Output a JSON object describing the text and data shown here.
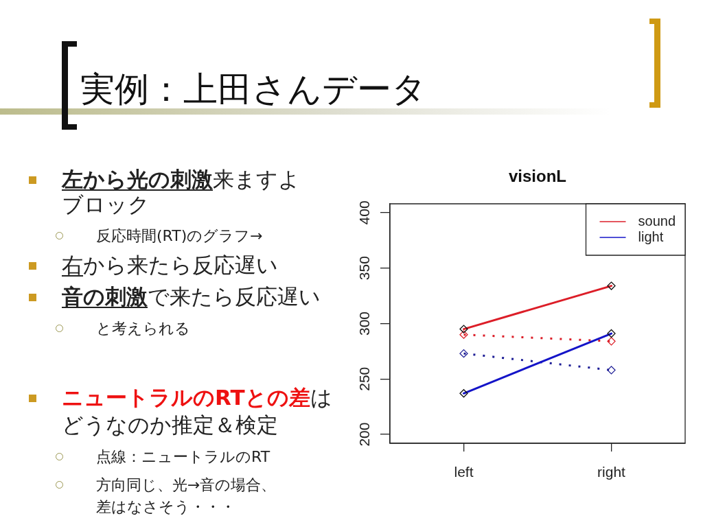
{
  "chart_data": {
    "type": "line",
    "title": "visionL",
    "categories": [
      "left",
      "right"
    ],
    "series": [
      {
        "name": "sound",
        "color": "#dc1e28",
        "values": [
          295,
          334
        ],
        "line_style": "solid"
      },
      {
        "name": "light",
        "color": "#1414c8",
        "values": [
          237,
          291
        ],
        "line_style": "solid"
      },
      {
        "color": "#dc1e28",
        "values": [
          290,
          284
        ],
        "line_style": "dotted"
      },
      {
        "color": "#1e1e96",
        "values": [
          273,
          258
        ],
        "line_style": "dotted"
      }
    ],
    "ylim": [
      192,
      408
    ],
    "yticks": [
      200,
      250,
      300,
      350,
      400
    ],
    "marker": "diamond",
    "legend": "top right",
    "annotations": [
      "実例：上田さんデータ",
      "左から光の刺激",
      "来ますよ",
      "ブロック",
      "反応時間(RT)のグラフ→",
      "右",
      "から来たら反応遅い",
      "音の刺激",
      "で来たら反応遅い",
      "と考えられる",
      "ニュートラルのRTとの差",
      "は",
      "どうなのか推定＆検定",
      "点線：ニュートラルのRT",
      "方向同じ、光→音の場合、",
      "差はなさそう・・・"
    ]
  }
}
